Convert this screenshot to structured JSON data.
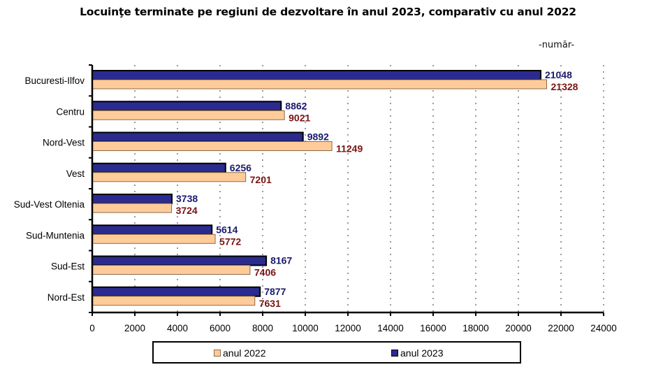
{
  "chart_data": {
    "type": "bar",
    "orientation": "horizontal",
    "title": "Locuinţe terminate pe regiuni de dezvoltare în anul 2023, comparativ cu anul 2022",
    "unit_label": "-număr-",
    "categories": [
      "Bucuresti-Ilfov",
      "Centru",
      "Nord-Vest",
      "Vest",
      "Sud-Vest Oltenia",
      "Sud-Muntenia",
      "Sud-Est",
      "Nord-Est"
    ],
    "series": [
      {
        "name": "anul 2023",
        "color": "#2b2b8f",
        "label_color": "#1a1a6e",
        "values": [
          21048,
          8862,
          9892,
          6256,
          3738,
          5614,
          8167,
          7877
        ]
      },
      {
        "name": "anul 2022",
        "color": "#ffcc99",
        "label_color": "#7a1414",
        "values": [
          21328,
          9021,
          11249,
          7201,
          3724,
          5772,
          7406,
          7631
        ]
      }
    ],
    "xlabel": "",
    "ylabel": "",
    "xlim": [
      0,
      24000
    ],
    "xticks": [
      0,
      2000,
      4000,
      6000,
      8000,
      10000,
      12000,
      14000,
      16000,
      18000,
      20000,
      22000,
      24000
    ],
    "grid": "vertical dotted",
    "legend": {
      "position": "bottom",
      "entries": [
        "anul 2022",
        "anul 2023"
      ]
    }
  }
}
